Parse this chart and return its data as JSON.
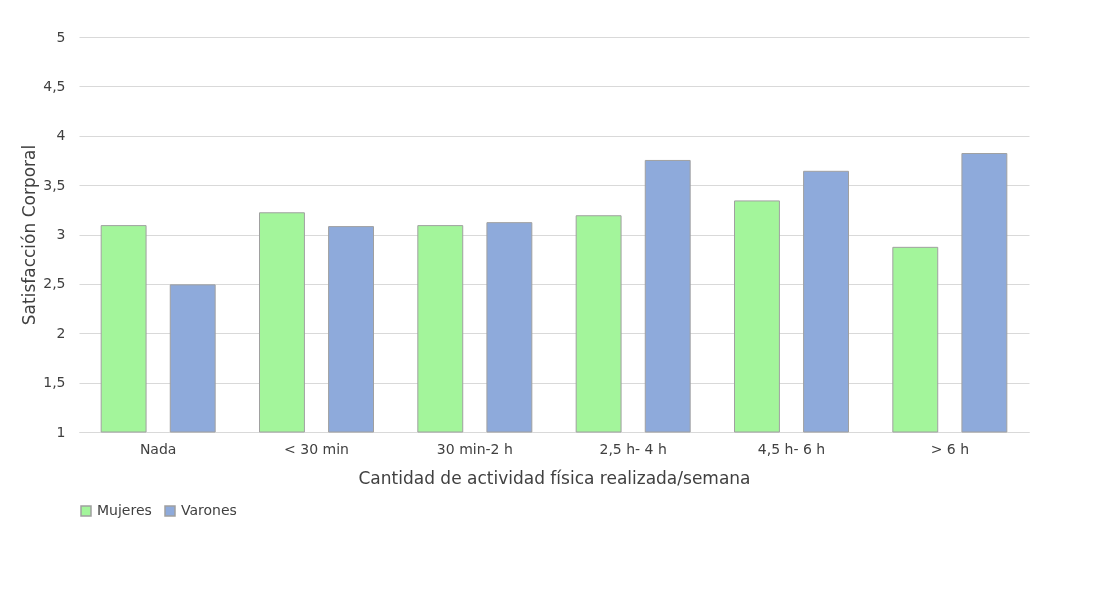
{
  "chart_data": {
    "type": "bar",
    "xlabel": "Cantidad de actividad física realizada/semana",
    "ylabel": "Satisfacción Corporal",
    "categories": [
      "Nada",
      "< 30 min",
      "30 min-2 h",
      "2,5 h- 4 h",
      "4,5 h- 6 h",
      "> 6 h"
    ],
    "series": [
      {
        "name": "Mujeres",
        "color": "#a3f59b",
        "values": [
          3.09,
          3.22,
          3.09,
          3.19,
          3.34,
          2.87
        ]
      },
      {
        "name": "Varones",
        "color": "#8eaadb",
        "values": [
          2.49,
          3.08,
          3.12,
          3.75,
          3.64,
          3.82
        ]
      }
    ],
    "ylim": [
      1,
      5
    ],
    "yticks": [
      1,
      {
        "value": 1.5,
        "label": "1,5"
      },
      2,
      {
        "value": 2.5,
        "label": "2,5"
      },
      3,
      {
        "value": 3.5,
        "label": "3,5"
      },
      4,
      {
        "value": 4.5,
        "label": "4,5"
      },
      5
    ],
    "grid": "y",
    "legend": "bottom"
  }
}
